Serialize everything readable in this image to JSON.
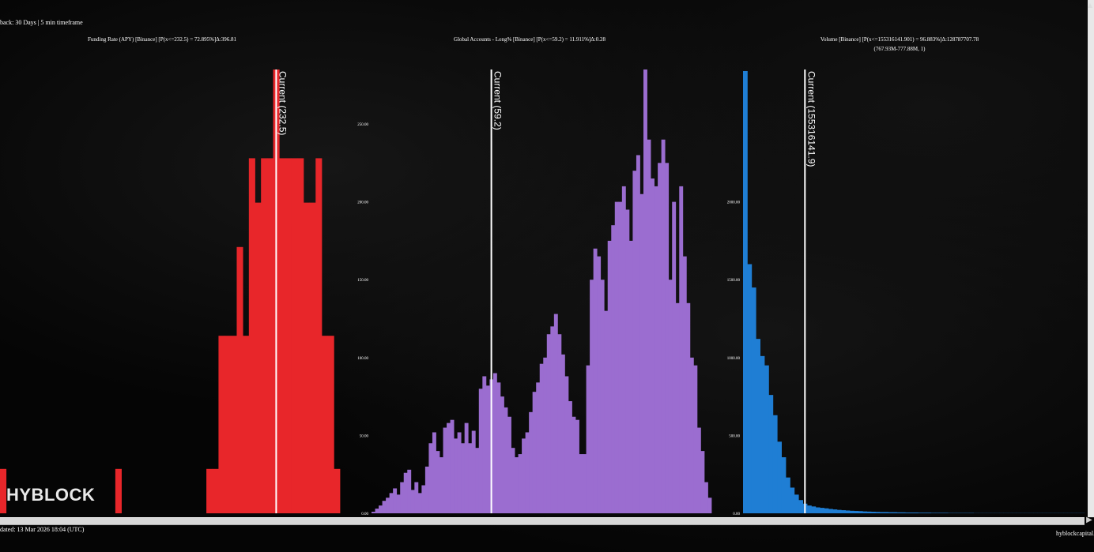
{
  "header": {
    "lookback": "back: 30 Days | 5 min timeframe"
  },
  "footer": {
    "updated": "dated: 13 Mar 2026 18:04 (UTC)",
    "site": "hyblockcapital.com"
  },
  "logo": {
    "text": "HYBLOCK"
  },
  "icons": {
    "scroll_right": "scroll-right-arrow-icon",
    "scroll_up": "scroll-up-arrow-icon"
  },
  "chart_data": [
    {
      "type": "bar",
      "title": "Funding Rate (APY) [Binance] [P(x<=232.5) = 72.895%]Δ:396.81",
      "color": "#e8262a",
      "current_label": "Current (232.5)",
      "current_index": 45,
      "ylim": [
        0,
        10
      ],
      "yticks": [],
      "values": [
        1,
        0,
        0,
        0,
        0,
        0,
        0,
        0,
        0,
        0,
        0,
        0,
        0,
        0,
        0,
        0,
        0,
        0,
        0,
        1,
        0,
        0,
        0,
        0,
        0,
        0,
        0,
        0,
        0,
        0,
        0,
        0,
        0,
        0,
        1,
        1,
        4,
        4,
        4,
        6,
        4,
        8,
        7,
        8,
        8,
        10,
        8,
        8,
        8,
        8,
        7,
        7,
        8,
        4,
        4,
        1
      ]
    },
    {
      "type": "bar",
      "title": "Global Accounts - Long% [Binance] [P(x<=59.2) = 11.911%]Δ:0.28",
      "color": "#9b6dd0",
      "current_label": "Current (59.2)",
      "current_index": 33,
      "ylim": [
        0,
        285
      ],
      "yticks": [
        "0.00",
        "50.00",
        "100.00",
        "150.00",
        "200.00",
        "250.00"
      ],
      "values": [
        1,
        3,
        5,
        8,
        10,
        13,
        16,
        12,
        20,
        26,
        28,
        15,
        20,
        13,
        18,
        30,
        45,
        52,
        40,
        36,
        55,
        58,
        60,
        48,
        52,
        45,
        58,
        45,
        53,
        42,
        80,
        88,
        82,
        86,
        90,
        84,
        75,
        68,
        62,
        42,
        36,
        38,
        48,
        52,
        65,
        78,
        84,
        96,
        100,
        115,
        120,
        128,
        115,
        102,
        88,
        72,
        62,
        60,
        38,
        38,
        95,
        150,
        170,
        165,
        150,
        130,
        175,
        185,
        200,
        200,
        210,
        195,
        175,
        220,
        230,
        205,
        285,
        240,
        215,
        210,
        225,
        240,
        225,
        150,
        200,
        135,
        210,
        165,
        135,
        100,
        95,
        55,
        40,
        20,
        10
      ]
    },
    {
      "type": "bar",
      "title": "Volume [Binance] [P(x<=155316141.901) = 96.883%]Δ:128787707.78",
      "subtitle": "(767.93M-777.88M, 1)",
      "color": "#1f7ed4",
      "current_label": "Current (155316141.9)",
      "current_index": 14,
      "ylim": [
        0,
        2850
      ],
      "yticks": [
        "0.00",
        "500.00",
        "1000.00",
        "1500.00",
        "2000.00"
      ],
      "values": [
        2840,
        1600,
        1450,
        1120,
        1010,
        950,
        760,
        630,
        460,
        360,
        230,
        165,
        120,
        85,
        62,
        50,
        44,
        38,
        35,
        32,
        28,
        25,
        22,
        20,
        18,
        16,
        15,
        14,
        12,
        11,
        10,
        9,
        8,
        8,
        7,
        7,
        6,
        6,
        5,
        5,
        5,
        4,
        4,
        4,
        3,
        3,
        3,
        3,
        2,
        2,
        2,
        2,
        2,
        2,
        1,
        1,
        1,
        1,
        1,
        1,
        1,
        1,
        1,
        1,
        1,
        1,
        1,
        1,
        1,
        1,
        1,
        1,
        1,
        1,
        1,
        1,
        1,
        1,
        1,
        1
      ]
    }
  ]
}
